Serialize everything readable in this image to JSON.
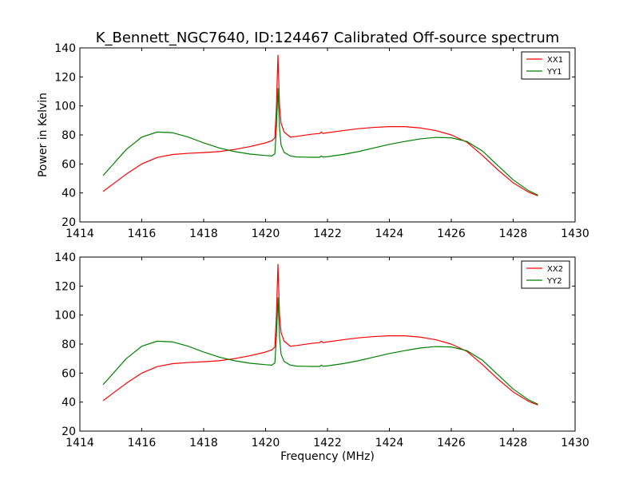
{
  "chart_data": [
    {
      "type": "line",
      "title": "K_Bennett_NGC7640, ID:124467 Calibrated Off-source spectrum",
      "xlabel": "",
      "ylabel": "Power in Kelvin",
      "xlim": [
        1414,
        1430
      ],
      "ylim": [
        20,
        140
      ],
      "xticks": [
        "1414",
        "1416",
        "1418",
        "1420",
        "1422",
        "1424",
        "1426",
        "1428",
        "1430"
      ],
      "yticks": [
        "20",
        "40",
        "60",
        "80",
        "100",
        "120",
        "140"
      ],
      "legend_position": "top-right",
      "grid": false,
      "series": [
        {
          "name": "XX1",
          "color": "#ff0000",
          "x": [
            1414.75,
            1415.0,
            1415.5,
            1416.0,
            1416.5,
            1417.0,
            1417.5,
            1418.0,
            1418.5,
            1419.0,
            1419.5,
            1420.0,
            1420.2,
            1420.3,
            1420.35,
            1420.4,
            1420.45,
            1420.5,
            1420.6,
            1420.8,
            1421.0,
            1421.5,
            1421.75,
            1421.8,
            1421.85,
            1422.0,
            1422.5,
            1423.0,
            1423.5,
            1424.0,
            1424.5,
            1425.0,
            1425.5,
            1426.0,
            1426.5,
            1427.0,
            1427.5,
            1428.0,
            1428.5,
            1428.8
          ],
          "values": [
            41,
            45,
            53,
            60,
            64.5,
            66.5,
            67.3,
            67.8,
            68.5,
            70,
            72,
            74.5,
            76,
            78,
            100,
            135,
            100,
            88,
            82,
            78.5,
            79,
            80.5,
            81,
            82,
            81,
            81.5,
            83,
            84.3,
            85.2,
            85.7,
            85.7,
            84.8,
            83,
            80,
            75,
            66,
            56,
            47,
            40.5,
            38
          ]
        },
        {
          "name": "YY1",
          "color": "#008000",
          "x": [
            1414.75,
            1415.0,
            1415.5,
            1416.0,
            1416.5,
            1417.0,
            1417.5,
            1418.0,
            1418.5,
            1419.0,
            1419.5,
            1420.0,
            1420.2,
            1420.3,
            1420.35,
            1420.4,
            1420.45,
            1420.5,
            1420.6,
            1420.8,
            1421.0,
            1421.5,
            1421.75,
            1421.8,
            1421.85,
            1422.0,
            1422.5,
            1423.0,
            1423.5,
            1424.0,
            1424.5,
            1425.0,
            1425.5,
            1426.0,
            1426.5,
            1427.0,
            1427.5,
            1428.0,
            1428.5,
            1428.8
          ],
          "values": [
            52,
            58,
            70,
            78.5,
            82,
            81.5,
            78.5,
            74.5,
            71,
            68.5,
            66.8,
            65.8,
            65.5,
            67,
            85,
            112,
            85,
            73,
            68,
            65.5,
            64.8,
            64.6,
            64.6,
            65.5,
            64.7,
            65,
            66.5,
            68.5,
            71,
            73.5,
            75.5,
            77.3,
            78.3,
            78,
            75.5,
            69,
            59,
            49,
            41.5,
            38.5
          ]
        }
      ]
    },
    {
      "type": "line",
      "title": "",
      "xlabel": "Frequency (MHz)",
      "ylabel": "",
      "xlim": [
        1414,
        1430
      ],
      "ylim": [
        20,
        140
      ],
      "xticks": [
        "1414",
        "1416",
        "1418",
        "1420",
        "1422",
        "1424",
        "1426",
        "1428",
        "1430"
      ],
      "yticks": [
        "20",
        "40",
        "60",
        "80",
        "100",
        "120",
        "140"
      ],
      "legend_position": "top-right",
      "grid": false,
      "series": [
        {
          "name": "XX2",
          "color": "#ff0000",
          "x": [
            1414.75,
            1415.0,
            1415.5,
            1416.0,
            1416.5,
            1417.0,
            1417.5,
            1418.0,
            1418.5,
            1419.0,
            1419.5,
            1420.0,
            1420.2,
            1420.3,
            1420.35,
            1420.4,
            1420.45,
            1420.5,
            1420.6,
            1420.8,
            1421.0,
            1421.5,
            1421.75,
            1421.8,
            1421.85,
            1422.0,
            1422.5,
            1423.0,
            1423.5,
            1424.0,
            1424.5,
            1425.0,
            1425.5,
            1426.0,
            1426.5,
            1427.0,
            1427.5,
            1428.0,
            1428.5,
            1428.8
          ],
          "values": [
            41,
            45,
            53,
            60,
            64.5,
            66.5,
            67.3,
            67.8,
            68.5,
            70,
            72,
            74.5,
            76,
            78,
            100,
            135,
            100,
            88,
            82,
            78.5,
            79,
            80.5,
            81,
            82,
            81,
            81.5,
            83,
            84.3,
            85.2,
            85.7,
            85.7,
            84.8,
            83,
            80,
            75,
            66,
            56,
            47,
            40.5,
            38
          ]
        },
        {
          "name": "YY2",
          "color": "#008000",
          "x": [
            1414.75,
            1415.0,
            1415.5,
            1416.0,
            1416.5,
            1417.0,
            1417.5,
            1418.0,
            1418.5,
            1419.0,
            1419.5,
            1420.0,
            1420.2,
            1420.3,
            1420.35,
            1420.4,
            1420.45,
            1420.5,
            1420.6,
            1420.8,
            1421.0,
            1421.5,
            1421.75,
            1421.8,
            1421.85,
            1422.0,
            1422.5,
            1423.0,
            1423.5,
            1424.0,
            1424.5,
            1425.0,
            1425.5,
            1426.0,
            1426.5,
            1427.0,
            1427.5,
            1428.0,
            1428.5,
            1428.8
          ],
          "values": [
            52,
            58,
            70,
            78.5,
            82,
            81.5,
            78.5,
            74.5,
            71,
            68.5,
            66.8,
            65.8,
            65.5,
            67,
            85,
            112,
            85,
            73,
            68,
            65.5,
            64.8,
            64.6,
            64.6,
            65.5,
            64.7,
            65,
            66.5,
            68.5,
            71,
            73.5,
            75.5,
            77.3,
            78.3,
            78,
            75.5,
            69,
            59,
            49,
            41.5,
            38.5
          ]
        }
      ]
    }
  ]
}
